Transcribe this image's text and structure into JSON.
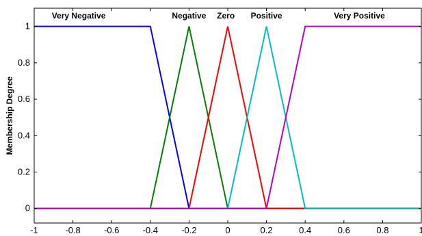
{
  "chart_data": {
    "type": "line",
    "title": "",
    "xlabel": "",
    "ylabel": "Membership Degree",
    "xlim": [
      -1,
      1
    ],
    "ylim": [
      -0.08,
      1.1
    ],
    "x_ticks": [
      -1,
      -0.8,
      -0.6,
      -0.4,
      -0.2,
      0,
      0.2,
      0.4,
      0.6,
      0.8,
      1
    ],
    "x_tick_labels": [
      "-1",
      "-0.8",
      "-0.6",
      "-0.4",
      "-0.2",
      "0",
      "0.2",
      "0.4",
      "0.6",
      "0.8",
      "1"
    ],
    "y_ticks": [
      0,
      0.2,
      0.4,
      0.6,
      0.8,
      1
    ],
    "y_tick_labels": [
      "0",
      "0.2",
      "0.4",
      "0.6",
      "0.8",
      "1"
    ],
    "grid": false,
    "series": [
      {
        "name": "Very Negative",
        "color": "#0000ff",
        "x": [
          -1,
          -0.4,
          -0.2,
          1
        ],
        "y": [
          1,
          1,
          0,
          0
        ]
      },
      {
        "name": "Negative",
        "color": "#008000",
        "x": [
          -1,
          -0.4,
          -0.2,
          0,
          1
        ],
        "y": [
          0,
          0,
          1,
          0,
          0
        ]
      },
      {
        "name": "Zero",
        "color": "#ff0000",
        "x": [
          -1,
          -0.2,
          0,
          0.2,
          1
        ],
        "y": [
          0,
          0,
          1,
          0,
          0
        ]
      },
      {
        "name": "Positive",
        "color": "#00bfbf",
        "x": [
          -1,
          0,
          0.2,
          0.4,
          1
        ],
        "y": [
          0,
          0,
          1,
          0,
          0
        ]
      },
      {
        "name": "Very Positive",
        "color": "#bf00bf",
        "x": [
          -1,
          0.2,
          0.4,
          1
        ],
        "y": [
          0,
          0,
          1,
          1
        ]
      }
    ],
    "annotations": [
      {
        "text": "Very Negative",
        "x": -0.77
      },
      {
        "text": "Negative",
        "x": -0.2
      },
      {
        "text": "Zero",
        "x": -0.01
      },
      {
        "text": "Positive",
        "x": 0.2
      },
      {
        "text": "Very Positive",
        "x": 0.68
      }
    ]
  }
}
